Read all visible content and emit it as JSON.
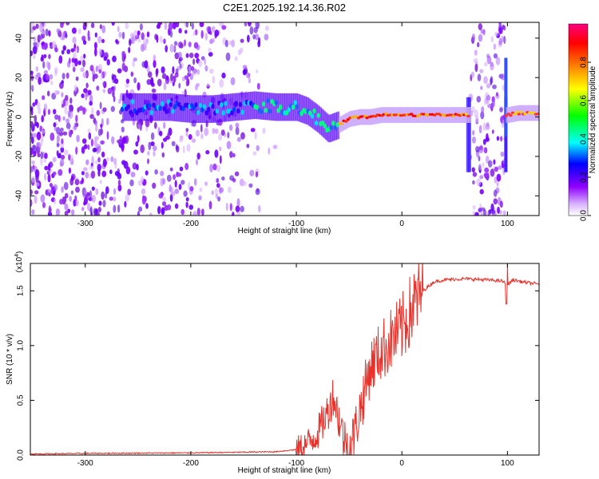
{
  "title": "C2E1.2025.192.14.36.R02",
  "chart_data": [
    {
      "type": "heatmap",
      "xlabel": "Height of straight line (km)",
      "ylabel": "Frequency (Hz)",
      "xlim": [
        -352,
        130
      ],
      "ylim": [
        -50,
        48
      ],
      "x_ticks": [
        "-300",
        "-200",
        "-100",
        "0",
        "100"
      ],
      "y_ticks": [
        "-40",
        "-20",
        "0",
        "20",
        "40"
      ],
      "colorbar": {
        "label": "Normalized spectral amplitude",
        "range": [
          0.0,
          1.0
        ],
        "ticks": [
          "0.0",
          "0.2",
          "0.4",
          "0.6",
          "0.8"
        ],
        "colors": [
          "#ffffff",
          "#9000ff",
          "#0000ff",
          "#00ffff",
          "#00ff00",
          "#ffff00",
          "#ff8000",
          "#ff0000",
          "#ff0080"
        ]
      },
      "ridge": {
        "x": [
          -265,
          -240,
          -220,
          -200,
          -180,
          -160,
          -140,
          -120,
          -100,
          -90,
          -80,
          -70,
          -60,
          -50,
          -40,
          -30,
          -20,
          -10,
          0,
          20,
          40,
          62,
          100,
          110,
          130
        ],
        "y": [
          5,
          5,
          5,
          4,
          4,
          5,
          6,
          5,
          5,
          3,
          -1,
          -6,
          -4,
          -1,
          0,
          0,
          1,
          1,
          1,
          1,
          1,
          1,
          1,
          2,
          2
        ]
      }
    },
    {
      "type": "line",
      "xlabel": "Height of straight line (km)",
      "ylabel": "SNR (10 * v/v)",
      "multiplier_label": "(x10",
      "multiplier_exp": "4",
      "multiplier_close": ")",
      "xlim": [
        -352,
        130
      ],
      "ylim": [
        0,
        1.75
      ],
      "x_ticks": [
        "-300",
        "-200",
        "-100",
        "0",
        "100"
      ],
      "y_ticks": [
        "0.0",
        "0.5",
        "1.0",
        "1.5"
      ],
      "color": "#e8322b",
      "series": [
        {
          "x": [
            -352,
            -300,
            -200,
            -120,
            -100,
            -90,
            -80,
            -70,
            -65,
            -60,
            -55,
            -50,
            -45,
            -40,
            -35,
            -30,
            -20,
            -10,
            0,
            10,
            20,
            30,
            40,
            60,
            80,
            95,
            100,
            105,
            115,
            130
          ],
          "y": [
            0.01,
            0.015,
            0.02,
            0.03,
            0.05,
            0.1,
            0.2,
            0.4,
            0.55,
            0.35,
            0.15,
            0.05,
            0.2,
            0.4,
            0.6,
            0.8,
            0.95,
            1.05,
            1.15,
            1.35,
            1.5,
            1.58,
            1.6,
            1.61,
            1.6,
            1.59,
            1.55,
            1.6,
            1.58,
            1.56
          ]
        }
      ]
    }
  ]
}
